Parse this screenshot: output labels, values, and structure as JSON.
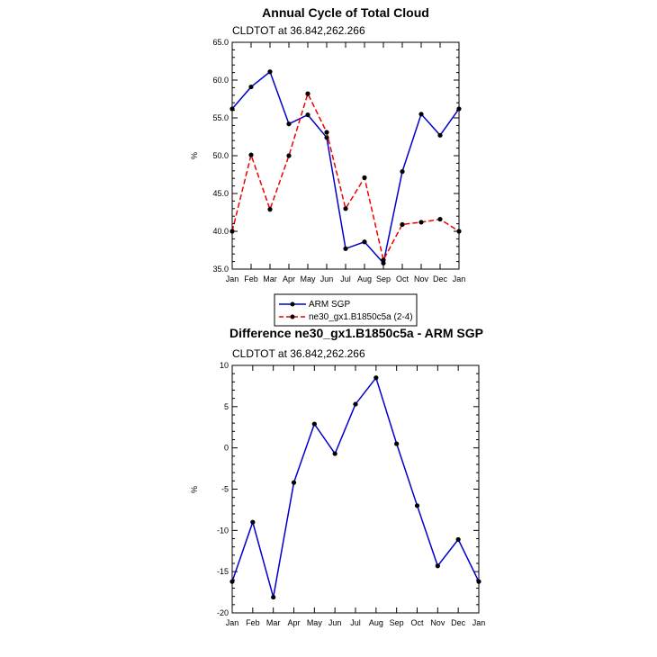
{
  "chart_data": [
    {
      "type": "line",
      "title": "Annual Cycle of Total Cloud",
      "subtitle": "CLDTOT at 36.842,262.266",
      "ylabel": "%",
      "ylim": [
        35,
        65
      ],
      "yticks": [
        "35.0",
        "40.0",
        "45.0",
        "50.0",
        "55.0",
        "60.0",
        "65.0"
      ],
      "categories": [
        "Jan",
        "Feb",
        "Mar",
        "Apr",
        "May",
        "Jun",
        "Jul",
        "Aug",
        "Sep",
        "Oct",
        "Nov",
        "Dec",
        "Jan"
      ],
      "legend_position": "below",
      "series": [
        {
          "name": "ARM SGP",
          "color": "#0000cc",
          "dash": "solid",
          "values": [
            56.2,
            59.1,
            61.1,
            54.2,
            55.4,
            52.4,
            37.7,
            38.6,
            35.8,
            47.9,
            55.5,
            52.7,
            56.2
          ]
        },
        {
          "name": "ne30_gx1.B1850c5a (2-4)",
          "color": "#ee0000",
          "dash": "dashed",
          "values": [
            40.0,
            50.1,
            42.9,
            50.0,
            58.2,
            53.1,
            43.0,
            47.1,
            36.2,
            40.9,
            41.2,
            41.6,
            40.0
          ]
        }
      ]
    },
    {
      "type": "line",
      "title": "Difference ne30_gx1.B1850c5a - ARM SGP",
      "subtitle": "CLDTOT at 36.842,262.266",
      "ylabel": "%",
      "ylim": [
        -20,
        10
      ],
      "yticks": [
        "-20",
        "-15",
        "-10",
        "-5",
        "0",
        "5",
        "10"
      ],
      "categories": [
        "Jan",
        "Feb",
        "Mar",
        "Apr",
        "May",
        "Jun",
        "Jul",
        "Aug",
        "Sep",
        "Oct",
        "Nov",
        "Dec",
        "Jan"
      ],
      "series": [
        {
          "color": "#0000cc",
          "dash": "solid",
          "values": [
            -16.2,
            -9.0,
            -18.1,
            -4.2,
            2.9,
            -0.7,
            5.3,
            8.5,
            0.5,
            -7.0,
            -14.3,
            -11.1,
            -16.2
          ]
        }
      ]
    }
  ]
}
